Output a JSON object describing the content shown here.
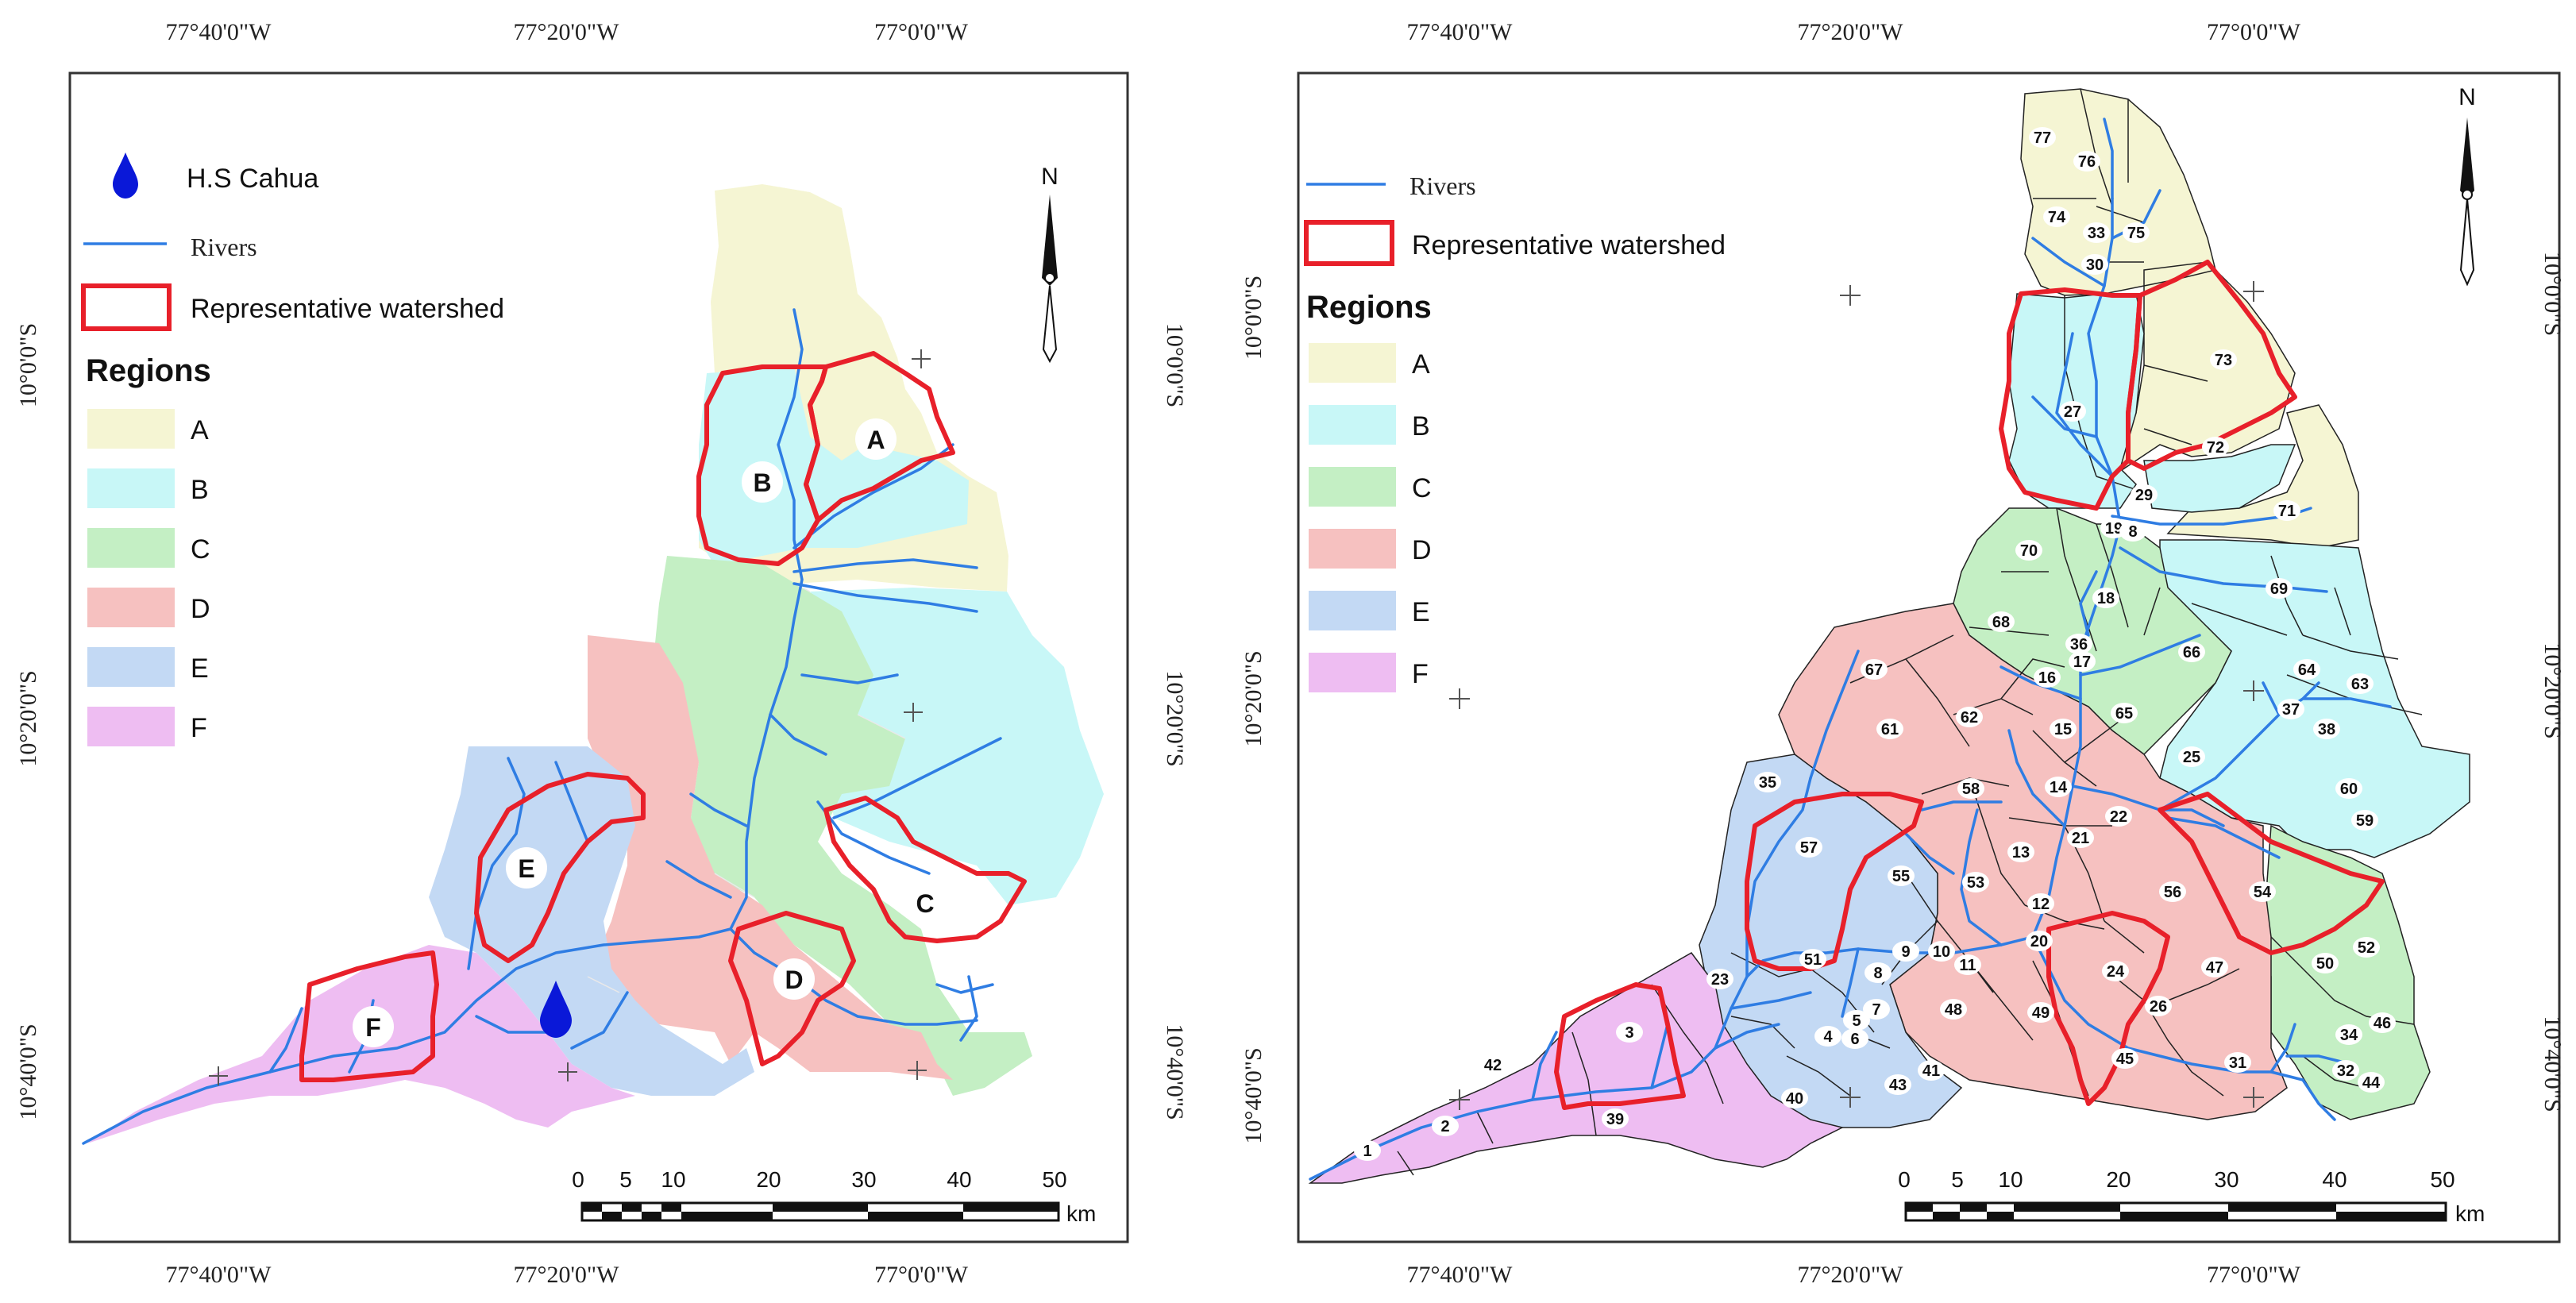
{
  "left_map": {
    "top_lon_labels": [
      "77°40'0\"W",
      "77°20'0\"W",
      "77°0'0\"W"
    ],
    "bottom_lon_labels": [
      "77°40'0\"W",
      "77°20'0\"W",
      "77°0'0\"W"
    ],
    "left_lat_labels": [
      "10°0'0\"S",
      "10°20'0\"S",
      "10°40'0\"S"
    ],
    "right_lat_labels": [
      "10°0'0\"S",
      "10°20'0\"S",
      "10°40'0\"S"
    ],
    "legend": {
      "station": "H.S Cahua",
      "rivers": "Rivers",
      "watershed": "Representative watershed",
      "regions_title": "Regions",
      "regions": [
        "A",
        "B",
        "C",
        "D",
        "E",
        "F"
      ]
    },
    "region_labels": [
      "A",
      "B",
      "C",
      "D",
      "E",
      "F"
    ],
    "north": "N",
    "scale_ticks": [
      "0",
      "5",
      "10",
      "20",
      "30",
      "40",
      "50"
    ],
    "scale_unit": "km"
  },
  "right_map": {
    "top_lon_labels": [
      "77°40'0\"W",
      "77°20'0\"W",
      "77°0'0\"W"
    ],
    "bottom_lon_labels": [
      "77°40'0\"W",
      "77°20'0\"W",
      "77°0'0\"W"
    ],
    "left_lat_labels": [
      "10°0'0\"S",
      "10°20'0\"S",
      "10°40'0\"S"
    ],
    "right_lat_labels": [
      "10°0'0\"S",
      "10°20'0\"S",
      "10°40'0\"S"
    ],
    "legend": {
      "rivers": "Rivers",
      "watershed": "Representative watershed",
      "regions_title": "Regions",
      "regions": [
        "A",
        "B",
        "C",
        "D",
        "E",
        "F"
      ]
    },
    "subbasin_labels": [
      "77",
      "76",
      "74",
      "33",
      "75",
      "30",
      "73",
      "27",
      "72",
      "29",
      "19",
      "8",
      "71",
      "70",
      "18",
      "69",
      "68",
      "36",
      "17",
      "66",
      "16",
      "64",
      "63",
      "67",
      "65",
      "37",
      "38",
      "60",
      "61",
      "62",
      "15",
      "25",
      "35",
      "58",
      "14",
      "22",
      "59",
      "57",
      "21",
      "13",
      "55",
      "53",
      "56",
      "54",
      "12",
      "20",
      "52",
      "51",
      "9",
      "10",
      "11",
      "24",
      "47",
      "50",
      "23",
      "8",
      "48",
      "49",
      "26",
      "46",
      "7",
      "5",
      "6",
      "4",
      "3",
      "41",
      "45",
      "31",
      "34",
      "32",
      "44",
      "42",
      "43",
      "40",
      "39",
      "2",
      "1"
    ],
    "north": "N",
    "scale_ticks": [
      "0",
      "5",
      "10",
      "20",
      "30",
      "40",
      "50"
    ],
    "scale_unit": "km"
  },
  "colors": {
    "A": "#f5f5d3",
    "B": "#c8f7f7",
    "C": "#c4efc4",
    "D": "#f6c1c0",
    "E": "#c3d9f4",
    "F": "#eebdf2",
    "river": "#2f7de3",
    "watershed": "#e8202a",
    "station": "#0a18d8"
  }
}
